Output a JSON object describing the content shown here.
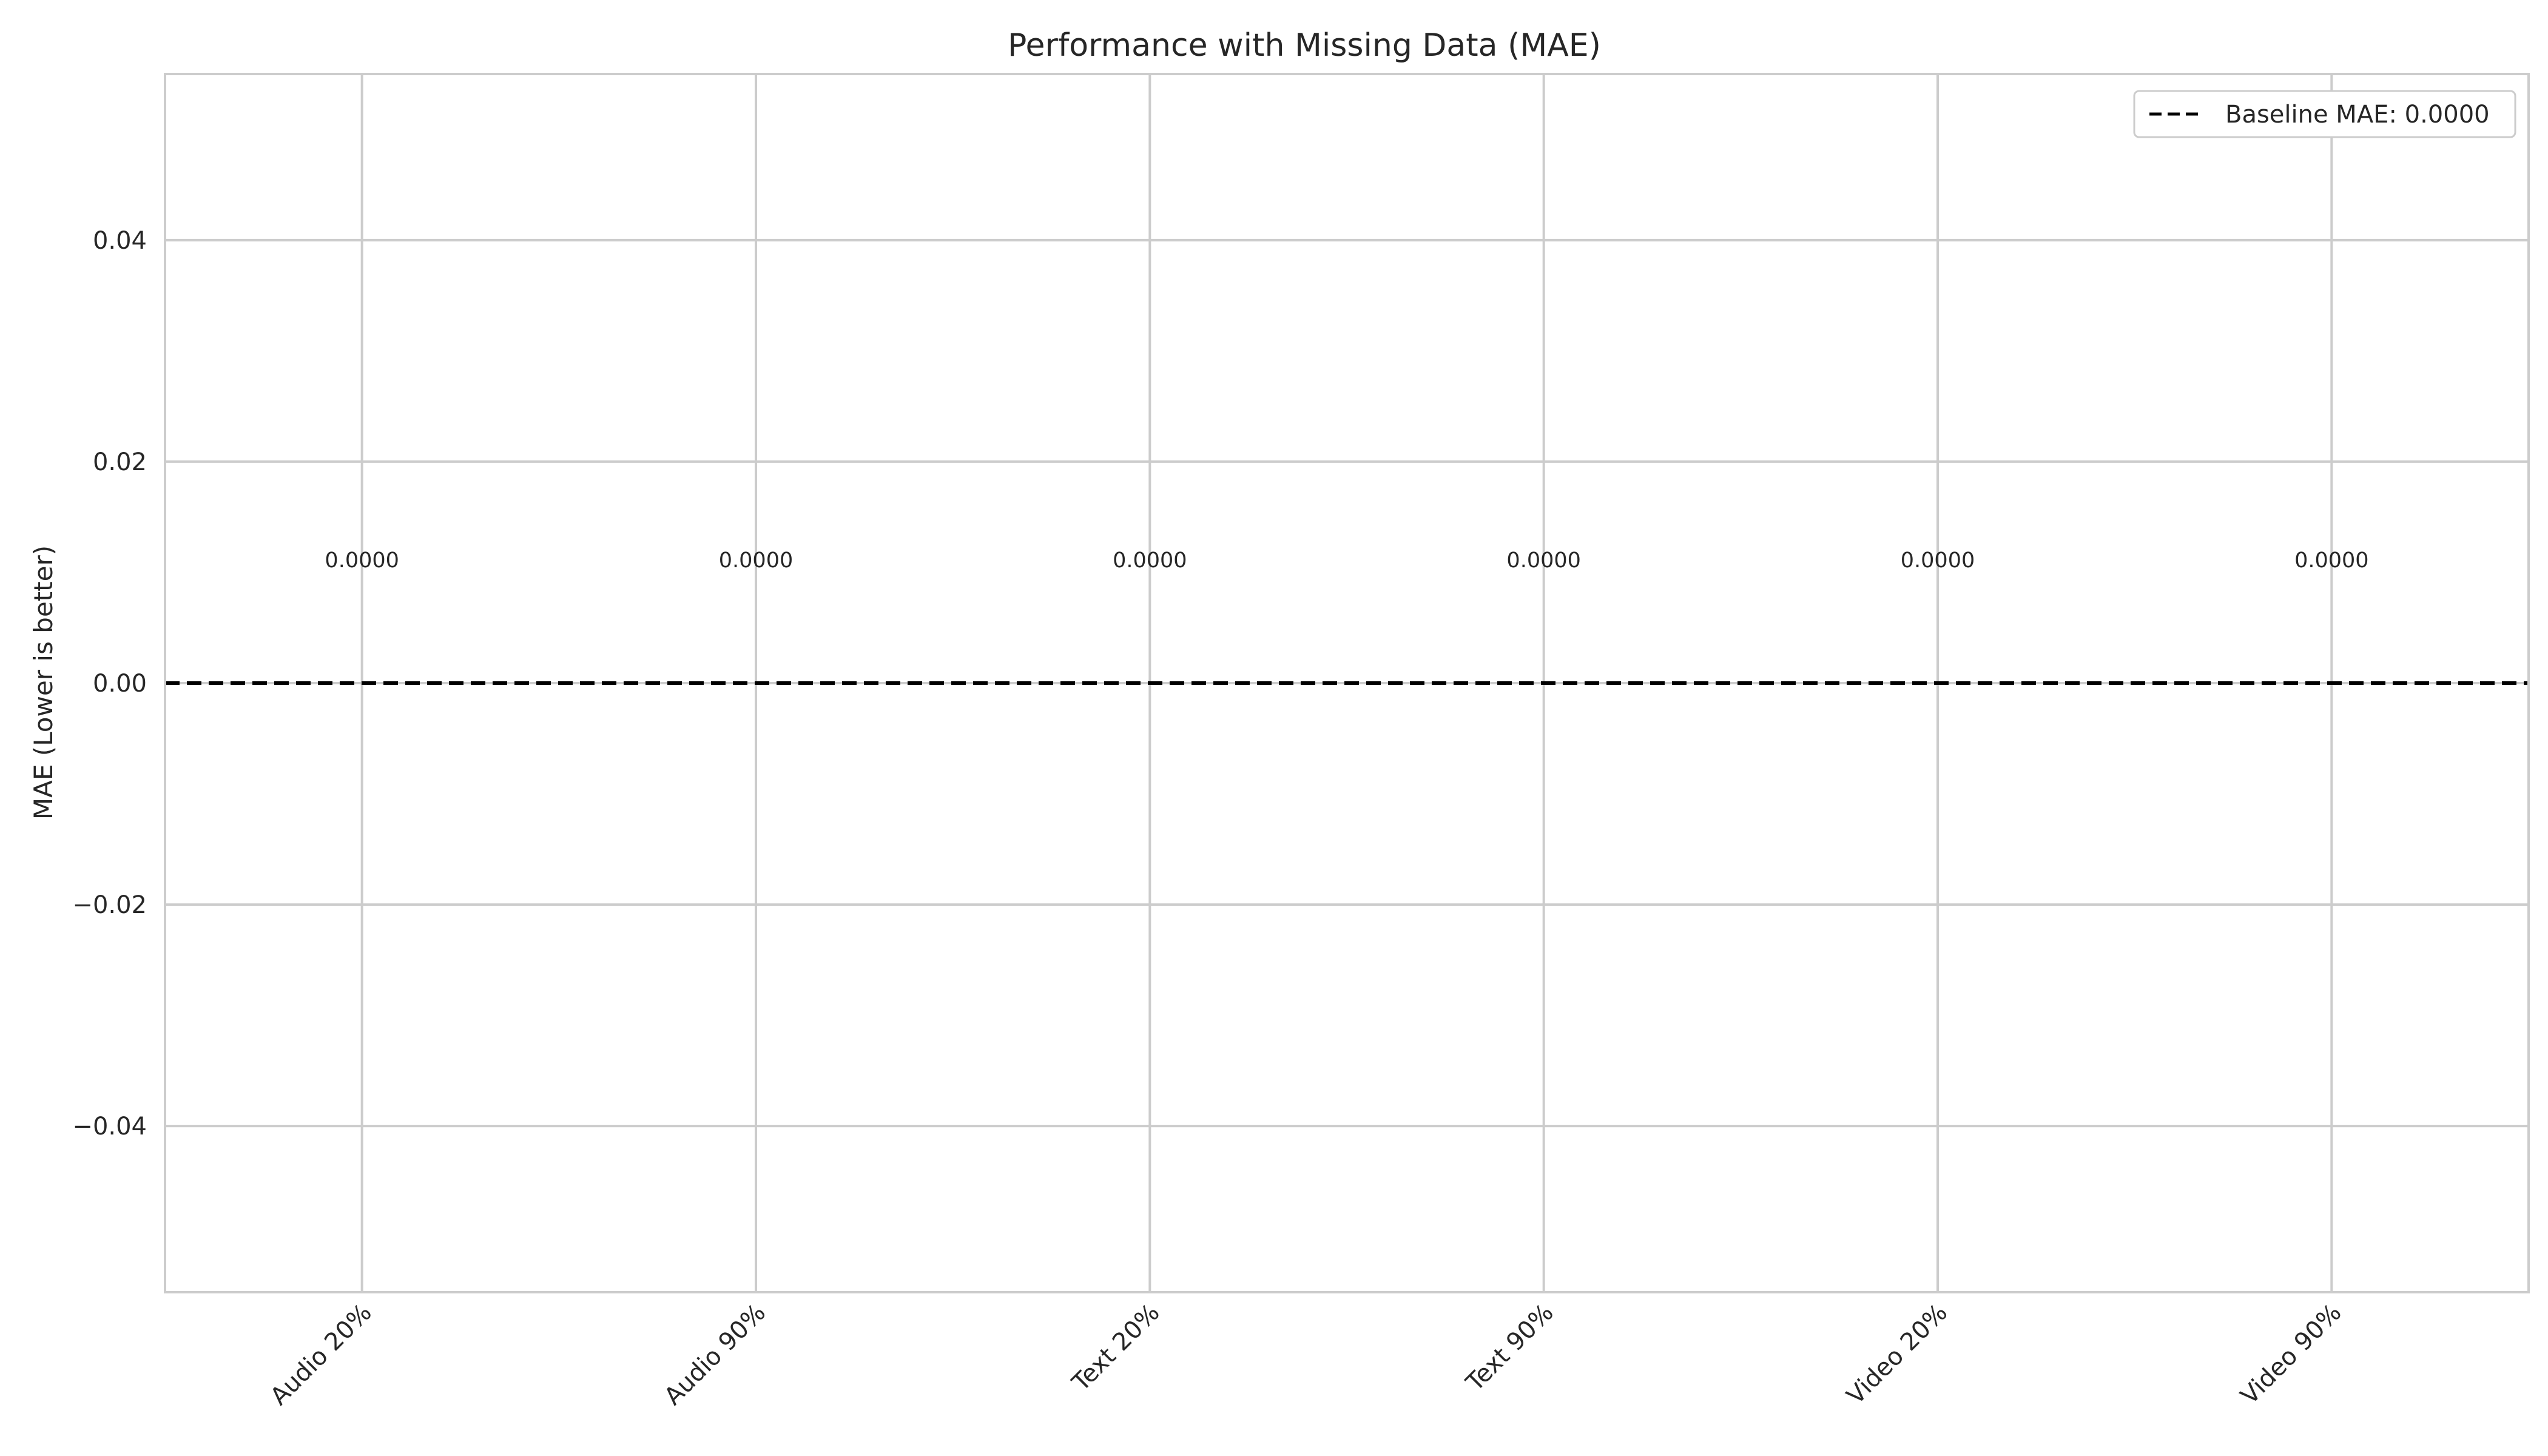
{
  "chart_data": {
    "type": "bar",
    "title": "Performance with Missing Data (MAE)",
    "xlabel": "",
    "ylabel": "MAE (Lower is better)",
    "categories": [
      "Audio 20%",
      "Audio 90%",
      "Text 20%",
      "Text 90%",
      "Video 20%",
      "Video 90%"
    ],
    "values": [
      0.0,
      0.0,
      0.0,
      0.0,
      0.0,
      0.0
    ],
    "data_labels": [
      "0.0000",
      "0.0000",
      "0.0000",
      "0.0000",
      "0.0000",
      "0.0000"
    ],
    "ylim": [
      -0.055,
      0.055
    ],
    "yticks": [
      -0.04,
      -0.02,
      0.0,
      0.02,
      0.04
    ],
    "ytick_labels": [
      "−0.04",
      "−0.02",
      "0.00",
      "0.02",
      "0.04"
    ],
    "baseline": {
      "value": 0.0,
      "label": "Baseline MAE: 0.0000",
      "color": "#000000",
      "style": "dashed"
    },
    "grid": true,
    "legend": "top-right",
    "colors": {
      "grid": "#cccccc",
      "axes": "#cccccc",
      "text": "#262626"
    }
  }
}
